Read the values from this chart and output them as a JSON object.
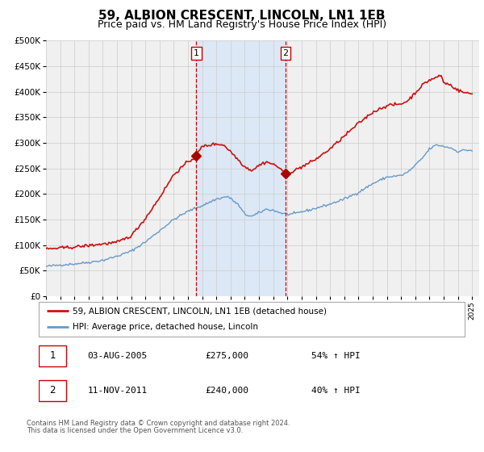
{
  "title": "59, ALBION CRESCENT, LINCOLN, LN1 1EB",
  "subtitle": "Price paid vs. HM Land Registry's House Price Index (HPI)",
  "title_fontsize": 11,
  "subtitle_fontsize": 9,
  "xlim": [
    1995.0,
    2025.5
  ],
  "ylim": [
    0,
    500000
  ],
  "yticks": [
    0,
    50000,
    100000,
    150000,
    200000,
    250000,
    300000,
    350000,
    400000,
    450000,
    500000
  ],
  "ytick_labels": [
    "£0",
    "£50K",
    "£100K",
    "£150K",
    "£200K",
    "£250K",
    "£300K",
    "£350K",
    "£400K",
    "£450K",
    "£500K"
  ],
  "xticks": [
    1995,
    1996,
    1997,
    1998,
    1999,
    2000,
    2001,
    2002,
    2003,
    2004,
    2005,
    2006,
    2007,
    2008,
    2009,
    2010,
    2011,
    2012,
    2013,
    2014,
    2015,
    2016,
    2017,
    2018,
    2019,
    2020,
    2021,
    2022,
    2023,
    2024,
    2025
  ],
  "sale1_x": 2005.586,
  "sale1_y": 275000,
  "sale2_x": 2011.86,
  "sale2_y": 240000,
  "vline_color": "#cc0000",
  "shade_color": "#dce8f5",
  "red_line_color": "#cc1111",
  "blue_line_color": "#6699cc",
  "marker_color": "#aa0000",
  "grid_color": "#cccccc",
  "bg_color": "#f0f0f0",
  "legend1_label": "59, ALBION CRESCENT, LINCOLN, LN1 1EB (detached house)",
  "legend2_label": "HPI: Average price, detached house, Lincoln",
  "table_row1": [
    "1",
    "03-AUG-2005",
    "£275,000",
    "54% ↑ HPI"
  ],
  "table_row2": [
    "2",
    "11-NOV-2011",
    "£240,000",
    "40% ↑ HPI"
  ],
  "footnote1": "Contains HM Land Registry data © Crown copyright and database right 2024.",
  "footnote2": "This data is licensed under the Open Government Licence v3.0."
}
